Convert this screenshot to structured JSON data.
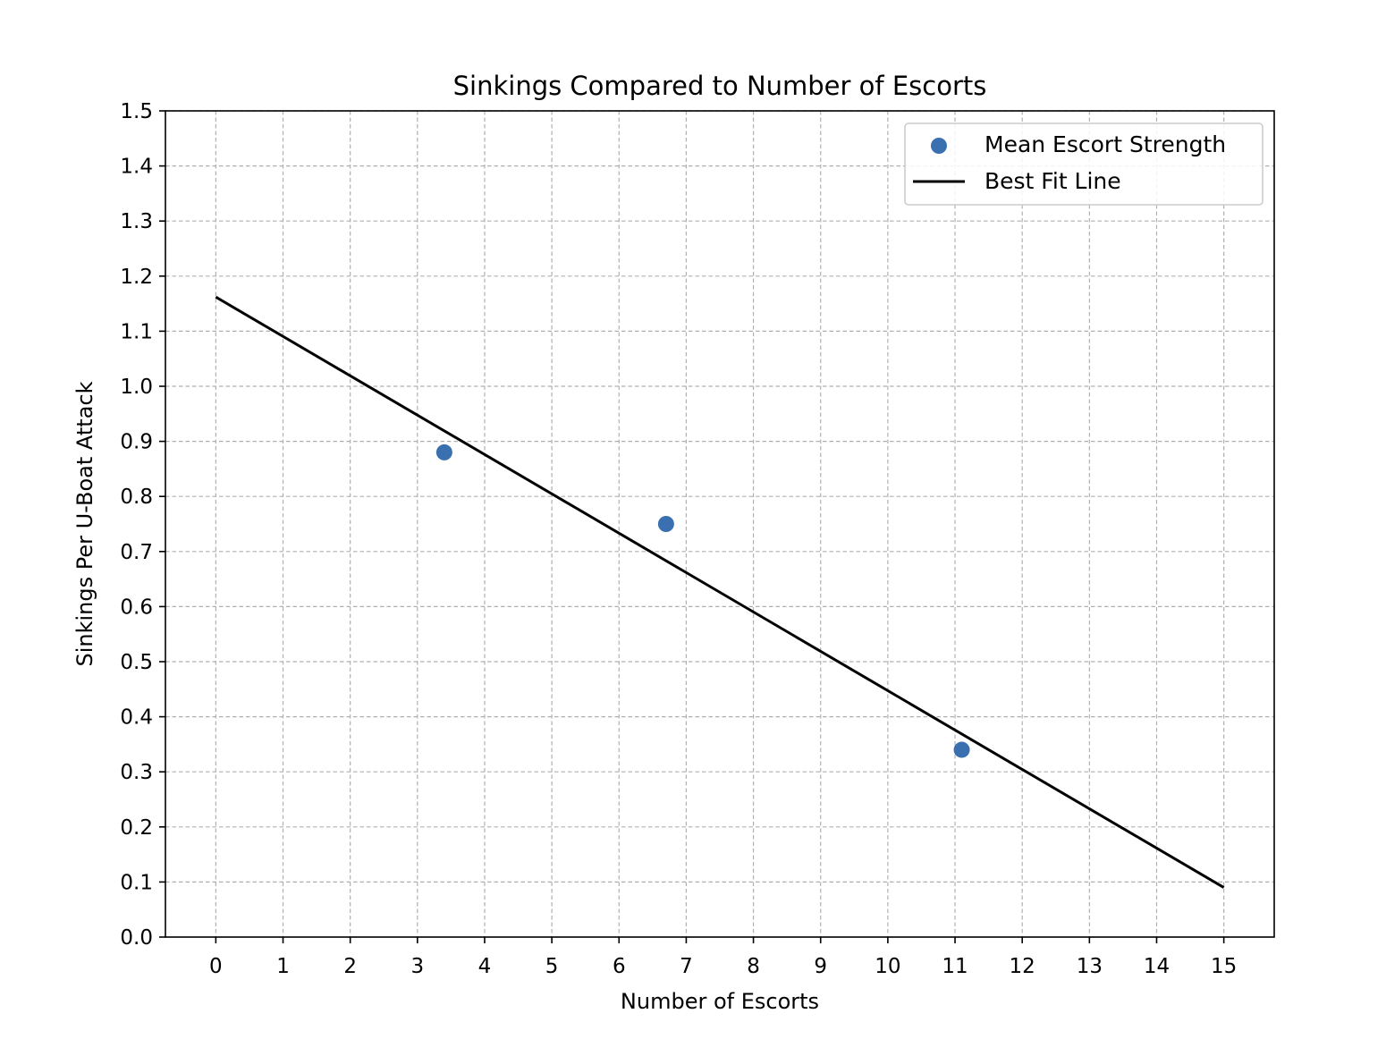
{
  "chart_data": {
    "type": "scatter",
    "title": "Sinkings Compared to Number of Escorts",
    "xlabel": "Number of Escorts",
    "ylabel": "Sinkings Per U-Boat Attack",
    "xlim": [
      -0.75,
      15.75
    ],
    "ylim": [
      0.0,
      1.5
    ],
    "xticks": [
      0,
      1,
      2,
      3,
      4,
      5,
      6,
      7,
      8,
      9,
      10,
      11,
      12,
      13,
      14,
      15
    ],
    "xtick_labels": [
      "0",
      "1",
      "2",
      "3",
      "4",
      "5",
      "6",
      "7",
      "8",
      "9",
      "10",
      "11",
      "12",
      "13",
      "14",
      "15"
    ],
    "yticks": [
      0.0,
      0.1,
      0.2,
      0.3,
      0.4,
      0.5,
      0.6,
      0.7,
      0.8,
      0.9,
      1.0,
      1.1,
      1.2,
      1.3,
      1.4,
      1.5
    ],
    "ytick_labels": [
      "0.0",
      "0.1",
      "0.2",
      "0.3",
      "0.4",
      "0.5",
      "0.6",
      "0.7",
      "0.8",
      "0.9",
      "1.0",
      "1.1",
      "1.2",
      "1.3",
      "1.4",
      "1.5"
    ],
    "grid": true,
    "legend_position": "top-right",
    "series": [
      {
        "name": "Mean Escort Strength",
        "kind": "scatter",
        "color": "#3a70b0",
        "x": [
          3.4,
          6.7,
          11.1
        ],
        "y": [
          0.88,
          0.75,
          0.34
        ]
      },
      {
        "name": "Best Fit Line",
        "kind": "line",
        "color": "#000000",
        "x": [
          0,
          15
        ],
        "y": [
          1.162,
          0.09
        ]
      }
    ]
  }
}
